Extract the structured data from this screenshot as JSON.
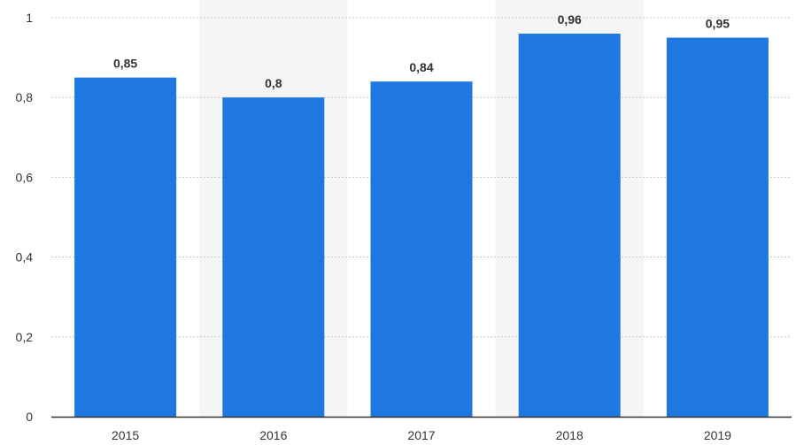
{
  "chart_data": {
    "type": "bar",
    "categories": [
      "2015",
      "2016",
      "2017",
      "2018",
      "2019"
    ],
    "values": [
      0.85,
      0.8,
      0.84,
      0.96,
      0.95
    ],
    "value_labels": [
      "0,85",
      "0,8",
      "0,84",
      "0,96",
      "0,95"
    ],
    "title": "",
    "xlabel": "",
    "ylabel": "",
    "ylim": [
      0,
      1
    ],
    "yticks": [
      0,
      0.2,
      0.4,
      0.6,
      0.8,
      1
    ],
    "ytick_labels": [
      "0",
      "0,2",
      "0,4",
      "0,6",
      "0,8",
      "1"
    ],
    "grid": true,
    "shaded_categories": [
      "2016",
      "2018"
    ],
    "colors": {
      "bar": "#1f78e0",
      "band": "#f5f5f5",
      "grid": "#c8c8c8",
      "axis": "#333333"
    }
  }
}
